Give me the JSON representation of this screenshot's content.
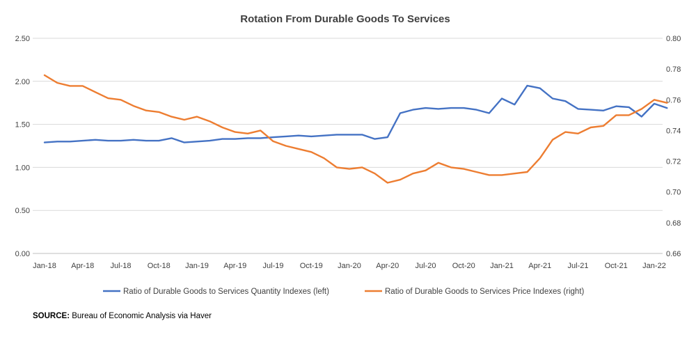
{
  "chart_data": {
    "type": "line",
    "title": "Rotation From Durable Goods To Services",
    "x_tick_labels": [
      "Jan-18",
      "Apr-18",
      "Jul-18",
      "Oct-18",
      "Jan-19",
      "Apr-19",
      "Jul-19",
      "Oct-19",
      "Jan-20",
      "Apr-20",
      "Jul-20",
      "Oct-20",
      "Jan-21",
      "Apr-21",
      "Jul-21",
      "Oct-21",
      "Jan-22"
    ],
    "y_left": {
      "range": [
        0,
        2.5
      ],
      "ticks": [
        "0.00",
        "0.50",
        "1.00",
        "1.50",
        "2.00",
        "2.50"
      ]
    },
    "y_right": {
      "range": [
        0.66,
        0.8
      ],
      "ticks": [
        "0.66",
        "0.68",
        "0.70",
        "0.72",
        "0.74",
        "0.76",
        "0.78",
        "0.80"
      ]
    },
    "months": [
      "Jan-18",
      "Feb-18",
      "Mar-18",
      "Apr-18",
      "May-18",
      "Jun-18",
      "Jul-18",
      "Aug-18",
      "Sep-18",
      "Oct-18",
      "Nov-18",
      "Dec-18",
      "Jan-19",
      "Feb-19",
      "Mar-19",
      "Apr-19",
      "May-19",
      "Jun-19",
      "Jul-19",
      "Aug-19",
      "Sep-19",
      "Oct-19",
      "Nov-19",
      "Dec-19",
      "Jan-20",
      "Feb-20",
      "Mar-20",
      "Apr-20",
      "May-20",
      "Jun-20",
      "Jul-20",
      "Aug-20",
      "Sep-20",
      "Oct-20",
      "Nov-20",
      "Dec-20",
      "Jan-21",
      "Feb-21",
      "Mar-21",
      "Apr-21",
      "May-21",
      "Jun-21",
      "Jul-21",
      "Aug-21",
      "Sep-21",
      "Oct-21",
      "Nov-21",
      "Dec-21",
      "Jan-22",
      "Feb-22"
    ],
    "series": [
      {
        "name": "Ratio of Durable Goods to Services Quantity Indexes (left)",
        "axis": "left",
        "color": "#4472c4",
        "values": [
          1.29,
          1.3,
          1.3,
          1.31,
          1.32,
          1.31,
          1.31,
          1.32,
          1.31,
          1.31,
          1.34,
          1.29,
          1.3,
          1.31,
          1.33,
          1.33,
          1.34,
          1.34,
          1.35,
          1.36,
          1.37,
          1.36,
          1.37,
          1.38,
          1.38,
          1.38,
          1.33,
          1.35,
          1.63,
          1.67,
          1.69,
          1.68,
          1.69,
          1.69,
          1.67,
          1.63,
          1.8,
          1.73,
          1.95,
          1.92,
          1.8,
          1.77,
          1.68,
          1.67,
          1.66,
          1.71,
          1.7,
          1.59,
          1.74,
          1.69
        ]
      },
      {
        "name": "Ratio of Durable Goods to Services Price Indexes (right)",
        "axis": "right",
        "color": "#ed7d31",
        "values": [
          0.776,
          0.771,
          0.769,
          0.769,
          0.765,
          0.761,
          0.76,
          0.756,
          0.753,
          0.752,
          0.749,
          0.747,
          0.749,
          0.746,
          0.742,
          0.739,
          0.738,
          0.74,
          0.733,
          0.73,
          0.728,
          0.726,
          0.722,
          0.716,
          0.715,
          0.716,
          0.712,
          0.706,
          0.708,
          0.712,
          0.714,
          0.719,
          0.716,
          0.715,
          0.713,
          0.711,
          0.711,
          0.712,
          0.713,
          0.722,
          0.734,
          0.739,
          0.738,
          0.742,
          0.743,
          0.75,
          0.75,
          0.754,
          0.76,
          0.758
        ]
      }
    ],
    "legend_position": "bottom",
    "grid": "horizontal"
  },
  "source": {
    "label": "SOURCE:",
    "text": "Bureau of Economic Analysis via Haver"
  }
}
